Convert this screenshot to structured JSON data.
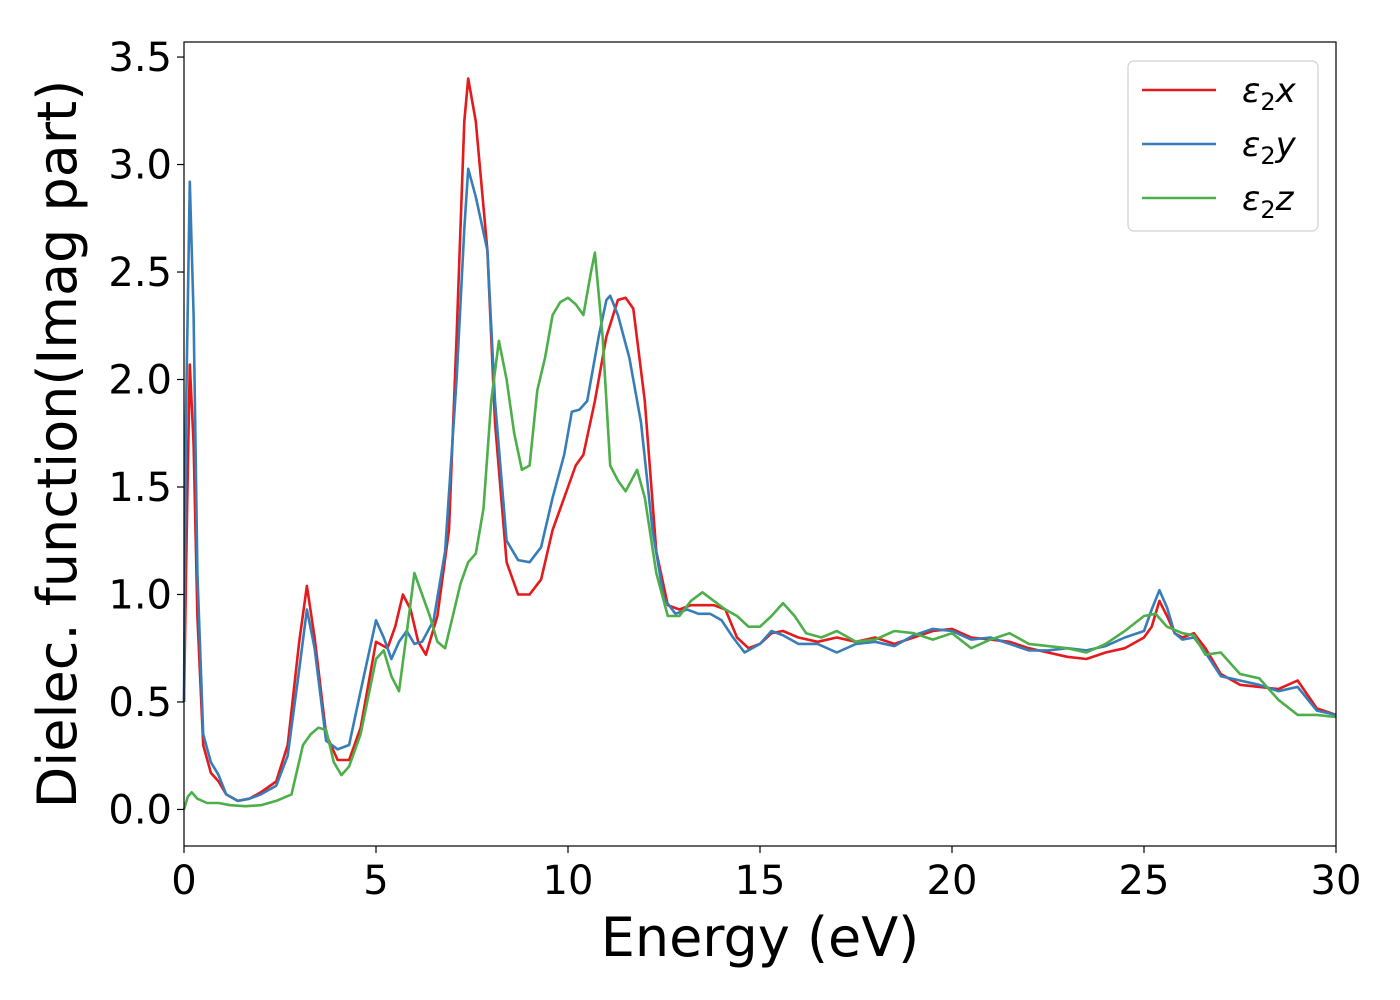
{
  "chart_data": {
    "type": "line",
    "xlabel": "Energy (eV)",
    "ylabel": "Dielec. function(Imag part)",
    "xlim": [
      0,
      30
    ],
    "ylim": [
      -0.17,
      3.57
    ],
    "xticks": [
      "0",
      "5",
      "10",
      "15",
      "20",
      "25",
      "30"
    ],
    "yticks": [
      "0.0",
      "0.5",
      "1.0",
      "1.5",
      "2.0",
      "2.5",
      "3.0",
      "3.5"
    ],
    "grid": false,
    "legend_position": "top-right",
    "series": [
      {
        "name": "ε2x",
        "legend_base": "ε",
        "legend_sub": "2",
        "legend_var": "x",
        "color": "#e41a1c",
        "points": [
          [
            0,
            0.5
          ],
          [
            0.08,
            1.4
          ],
          [
            0.15,
            2.07
          ],
          [
            0.25,
            1.7
          ],
          [
            0.35,
            0.9
          ],
          [
            0.5,
            0.3
          ],
          [
            0.7,
            0.17
          ],
          [
            0.9,
            0.13
          ],
          [
            1.1,
            0.07
          ],
          [
            1.4,
            0.04
          ],
          [
            1.7,
            0.05
          ],
          [
            2.0,
            0.08
          ],
          [
            2.4,
            0.13
          ],
          [
            2.7,
            0.3
          ],
          [
            3.0,
            0.78
          ],
          [
            3.2,
            1.04
          ],
          [
            3.4,
            0.8
          ],
          [
            3.7,
            0.35
          ],
          [
            4.0,
            0.23
          ],
          [
            4.3,
            0.23
          ],
          [
            4.6,
            0.38
          ],
          [
            5.0,
            0.78
          ],
          [
            5.3,
            0.75
          ],
          [
            5.5,
            0.85
          ],
          [
            5.7,
            1.0
          ],
          [
            5.9,
            0.93
          ],
          [
            6.1,
            0.78
          ],
          [
            6.3,
            0.72
          ],
          [
            6.6,
            0.9
          ],
          [
            6.9,
            1.3
          ],
          [
            7.1,
            2.2
          ],
          [
            7.3,
            3.2
          ],
          [
            7.4,
            3.4
          ],
          [
            7.6,
            3.2
          ],
          [
            7.9,
            2.6
          ],
          [
            8.1,
            1.8
          ],
          [
            8.4,
            1.15
          ],
          [
            8.7,
            1.0
          ],
          [
            9.0,
            1.0
          ],
          [
            9.3,
            1.07
          ],
          [
            9.6,
            1.3
          ],
          [
            9.9,
            1.45
          ],
          [
            10.2,
            1.6
          ],
          [
            10.4,
            1.65
          ],
          [
            10.7,
            1.9
          ],
          [
            11.0,
            2.2
          ],
          [
            11.3,
            2.37
          ],
          [
            11.5,
            2.38
          ],
          [
            11.7,
            2.33
          ],
          [
            12.0,
            1.9
          ],
          [
            12.3,
            1.2
          ],
          [
            12.6,
            0.95
          ],
          [
            12.9,
            0.93
          ],
          [
            13.2,
            0.95
          ],
          [
            13.5,
            0.95
          ],
          [
            13.8,
            0.95
          ],
          [
            14.1,
            0.93
          ],
          [
            14.4,
            0.8
          ],
          [
            14.7,
            0.75
          ],
          [
            15.0,
            0.77
          ],
          [
            15.3,
            0.82
          ],
          [
            15.6,
            0.83
          ],
          [
            16.0,
            0.8
          ],
          [
            16.5,
            0.78
          ],
          [
            17.0,
            0.8
          ],
          [
            17.5,
            0.78
          ],
          [
            18.0,
            0.8
          ],
          [
            18.5,
            0.77
          ],
          [
            19.0,
            0.8
          ],
          [
            19.5,
            0.83
          ],
          [
            20.0,
            0.84
          ],
          [
            20.5,
            0.8
          ],
          [
            21.0,
            0.79
          ],
          [
            21.5,
            0.78
          ],
          [
            22.0,
            0.75
          ],
          [
            22.5,
            0.73
          ],
          [
            23.0,
            0.71
          ],
          [
            23.5,
            0.7
          ],
          [
            24.0,
            0.73
          ],
          [
            24.5,
            0.75
          ],
          [
            25.0,
            0.8
          ],
          [
            25.2,
            0.85
          ],
          [
            25.4,
            0.97
          ],
          [
            25.6,
            0.9
          ],
          [
            25.8,
            0.82
          ],
          [
            26.0,
            0.8
          ],
          [
            26.3,
            0.82
          ],
          [
            26.6,
            0.75
          ],
          [
            27.0,
            0.63
          ],
          [
            27.5,
            0.58
          ],
          [
            28.0,
            0.57
          ],
          [
            28.5,
            0.56
          ],
          [
            29.0,
            0.6
          ],
          [
            29.5,
            0.47
          ],
          [
            30.0,
            0.44
          ]
        ]
      },
      {
        "name": "ε2y",
        "legend_base": "ε",
        "legend_sub": "2",
        "legend_var": "y",
        "color": "#377eb8",
        "points": [
          [
            0,
            0.5
          ],
          [
            0.05,
            1.8
          ],
          [
            0.15,
            2.92
          ],
          [
            0.25,
            2.3
          ],
          [
            0.35,
            1.1
          ],
          [
            0.5,
            0.35
          ],
          [
            0.7,
            0.22
          ],
          [
            0.9,
            0.16
          ],
          [
            1.1,
            0.07
          ],
          [
            1.4,
            0.04
          ],
          [
            1.7,
            0.05
          ],
          [
            2.0,
            0.07
          ],
          [
            2.4,
            0.11
          ],
          [
            2.7,
            0.25
          ],
          [
            3.0,
            0.65
          ],
          [
            3.2,
            0.93
          ],
          [
            3.4,
            0.75
          ],
          [
            3.7,
            0.32
          ],
          [
            4.0,
            0.28
          ],
          [
            4.3,
            0.3
          ],
          [
            4.6,
            0.55
          ],
          [
            5.0,
            0.88
          ],
          [
            5.2,
            0.8
          ],
          [
            5.4,
            0.7
          ],
          [
            5.6,
            0.78
          ],
          [
            5.8,
            0.83
          ],
          [
            6.0,
            0.77
          ],
          [
            6.2,
            0.78
          ],
          [
            6.5,
            0.88
          ],
          [
            6.8,
            1.2
          ],
          [
            7.1,
            2.0
          ],
          [
            7.3,
            2.7
          ],
          [
            7.4,
            2.98
          ],
          [
            7.6,
            2.85
          ],
          [
            7.9,
            2.6
          ],
          [
            8.1,
            1.9
          ],
          [
            8.4,
            1.25
          ],
          [
            8.7,
            1.16
          ],
          [
            9.0,
            1.15
          ],
          [
            9.3,
            1.22
          ],
          [
            9.6,
            1.45
          ],
          [
            9.9,
            1.65
          ],
          [
            10.1,
            1.85
          ],
          [
            10.3,
            1.86
          ],
          [
            10.5,
            1.9
          ],
          [
            10.8,
            2.2
          ],
          [
            11.0,
            2.37
          ],
          [
            11.1,
            2.39
          ],
          [
            11.3,
            2.3
          ],
          [
            11.6,
            2.1
          ],
          [
            11.9,
            1.8
          ],
          [
            12.2,
            1.3
          ],
          [
            12.5,
            0.98
          ],
          [
            12.8,
            0.91
          ],
          [
            13.1,
            0.93
          ],
          [
            13.4,
            0.91
          ],
          [
            13.7,
            0.91
          ],
          [
            14.0,
            0.88
          ],
          [
            14.3,
            0.8
          ],
          [
            14.6,
            0.73
          ],
          [
            15.0,
            0.77
          ],
          [
            15.3,
            0.83
          ],
          [
            15.6,
            0.81
          ],
          [
            16.0,
            0.77
          ],
          [
            16.5,
            0.77
          ],
          [
            17.0,
            0.73
          ],
          [
            17.5,
            0.77
          ],
          [
            18.0,
            0.78
          ],
          [
            18.5,
            0.76
          ],
          [
            19.0,
            0.81
          ],
          [
            19.5,
            0.84
          ],
          [
            20.0,
            0.83
          ],
          [
            20.5,
            0.79
          ],
          [
            21.0,
            0.8
          ],
          [
            21.5,
            0.77
          ],
          [
            22.0,
            0.74
          ],
          [
            22.5,
            0.74
          ],
          [
            23.0,
            0.75
          ],
          [
            23.5,
            0.74
          ],
          [
            24.0,
            0.76
          ],
          [
            24.5,
            0.8
          ],
          [
            25.0,
            0.83
          ],
          [
            25.2,
            0.93
          ],
          [
            25.4,
            1.02
          ],
          [
            25.6,
            0.94
          ],
          [
            25.8,
            0.82
          ],
          [
            26.0,
            0.79
          ],
          [
            26.3,
            0.8
          ],
          [
            26.6,
            0.73
          ],
          [
            27.0,
            0.62
          ],
          [
            27.5,
            0.6
          ],
          [
            28.0,
            0.58
          ],
          [
            28.5,
            0.55
          ],
          [
            29.0,
            0.57
          ],
          [
            29.5,
            0.46
          ],
          [
            30.0,
            0.44
          ]
        ]
      },
      {
        "name": "ε2z",
        "legend_base": "ε",
        "legend_sub": "2",
        "legend_var": "z",
        "color": "#4daf4a",
        "points": [
          [
            0,
            0.0
          ],
          [
            0.1,
            0.06
          ],
          [
            0.2,
            0.08
          ],
          [
            0.35,
            0.05
          ],
          [
            0.6,
            0.03
          ],
          [
            0.9,
            0.03
          ],
          [
            1.2,
            0.02
          ],
          [
            1.6,
            0.015
          ],
          [
            2.0,
            0.02
          ],
          [
            2.4,
            0.04
          ],
          [
            2.8,
            0.07
          ],
          [
            3.1,
            0.3
          ],
          [
            3.3,
            0.35
          ],
          [
            3.5,
            0.38
          ],
          [
            3.7,
            0.37
          ],
          [
            3.9,
            0.22
          ],
          [
            4.1,
            0.16
          ],
          [
            4.3,
            0.2
          ],
          [
            4.6,
            0.35
          ],
          [
            5.0,
            0.7
          ],
          [
            5.2,
            0.74
          ],
          [
            5.4,
            0.62
          ],
          [
            5.6,
            0.55
          ],
          [
            5.8,
            0.82
          ],
          [
            6.0,
            1.1
          ],
          [
            6.2,
            1.0
          ],
          [
            6.4,
            0.9
          ],
          [
            6.6,
            0.78
          ],
          [
            6.8,
            0.75
          ],
          [
            7.0,
            0.9
          ],
          [
            7.2,
            1.05
          ],
          [
            7.4,
            1.15
          ],
          [
            7.6,
            1.19
          ],
          [
            7.8,
            1.4
          ],
          [
            8.0,
            1.9
          ],
          [
            8.2,
            2.18
          ],
          [
            8.4,
            2.0
          ],
          [
            8.6,
            1.75
          ],
          [
            8.8,
            1.58
          ],
          [
            9.0,
            1.6
          ],
          [
            9.2,
            1.95
          ],
          [
            9.4,
            2.1
          ],
          [
            9.6,
            2.3
          ],
          [
            9.8,
            2.36
          ],
          [
            10.0,
            2.38
          ],
          [
            10.2,
            2.35
          ],
          [
            10.4,
            2.3
          ],
          [
            10.6,
            2.5
          ],
          [
            10.7,
            2.59
          ],
          [
            10.9,
            2.2
          ],
          [
            11.1,
            1.6
          ],
          [
            11.3,
            1.53
          ],
          [
            11.5,
            1.48
          ],
          [
            11.8,
            1.58
          ],
          [
            12.0,
            1.45
          ],
          [
            12.3,
            1.1
          ],
          [
            12.6,
            0.9
          ],
          [
            12.9,
            0.9
          ],
          [
            13.2,
            0.97
          ],
          [
            13.5,
            1.01
          ],
          [
            13.8,
            0.97
          ],
          [
            14.1,
            0.93
          ],
          [
            14.4,
            0.9
          ],
          [
            14.7,
            0.85
          ],
          [
            15.0,
            0.85
          ],
          [
            15.3,
            0.9
          ],
          [
            15.6,
            0.96
          ],
          [
            15.9,
            0.9
          ],
          [
            16.2,
            0.82
          ],
          [
            16.6,
            0.8
          ],
          [
            17.0,
            0.83
          ],
          [
            17.5,
            0.78
          ],
          [
            18.0,
            0.79
          ],
          [
            18.5,
            0.83
          ],
          [
            19.0,
            0.82
          ],
          [
            19.5,
            0.79
          ],
          [
            20.0,
            0.82
          ],
          [
            20.5,
            0.75
          ],
          [
            21.0,
            0.79
          ],
          [
            21.5,
            0.82
          ],
          [
            22.0,
            0.77
          ],
          [
            22.5,
            0.76
          ],
          [
            23.0,
            0.75
          ],
          [
            23.5,
            0.73
          ],
          [
            24.0,
            0.77
          ],
          [
            24.5,
            0.83
          ],
          [
            25.0,
            0.9
          ],
          [
            25.3,
            0.91
          ],
          [
            25.6,
            0.85
          ],
          [
            26.0,
            0.82
          ],
          [
            26.3,
            0.81
          ],
          [
            26.6,
            0.72
          ],
          [
            27.0,
            0.73
          ],
          [
            27.5,
            0.63
          ],
          [
            28.0,
            0.61
          ],
          [
            28.5,
            0.51
          ],
          [
            29.0,
            0.44
          ],
          [
            29.5,
            0.44
          ],
          [
            30.0,
            0.43
          ]
        ]
      }
    ]
  }
}
